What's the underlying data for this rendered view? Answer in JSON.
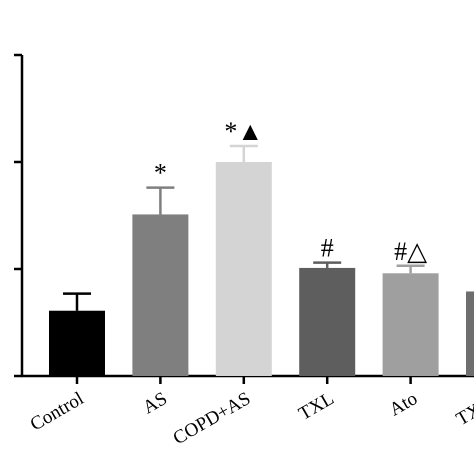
{
  "chart_data": {
    "type": "bar",
    "categories": [
      "Control",
      "AS",
      "COPD+AS",
      "TXL",
      "Ato",
      "TXL+"
    ],
    "values": [
      0.61,
      1.51,
      2.0,
      1.01,
      0.96,
      0.79
    ],
    "errors": [
      0.16,
      0.25,
      0.15,
      0.05,
      0.07,
      null
    ],
    "colors": [
      "#000000",
      "#7f7f7f",
      "#d4d4d4",
      "#5e5e5e",
      "#9f9f9f",
      "#6e6e6e"
    ],
    "annotations": [
      "",
      "*",
      "*▲",
      "#",
      "#△",
      null
    ],
    "ylim": [
      0,
      3
    ],
    "yticks": [
      0,
      1,
      2,
      3
    ]
  }
}
